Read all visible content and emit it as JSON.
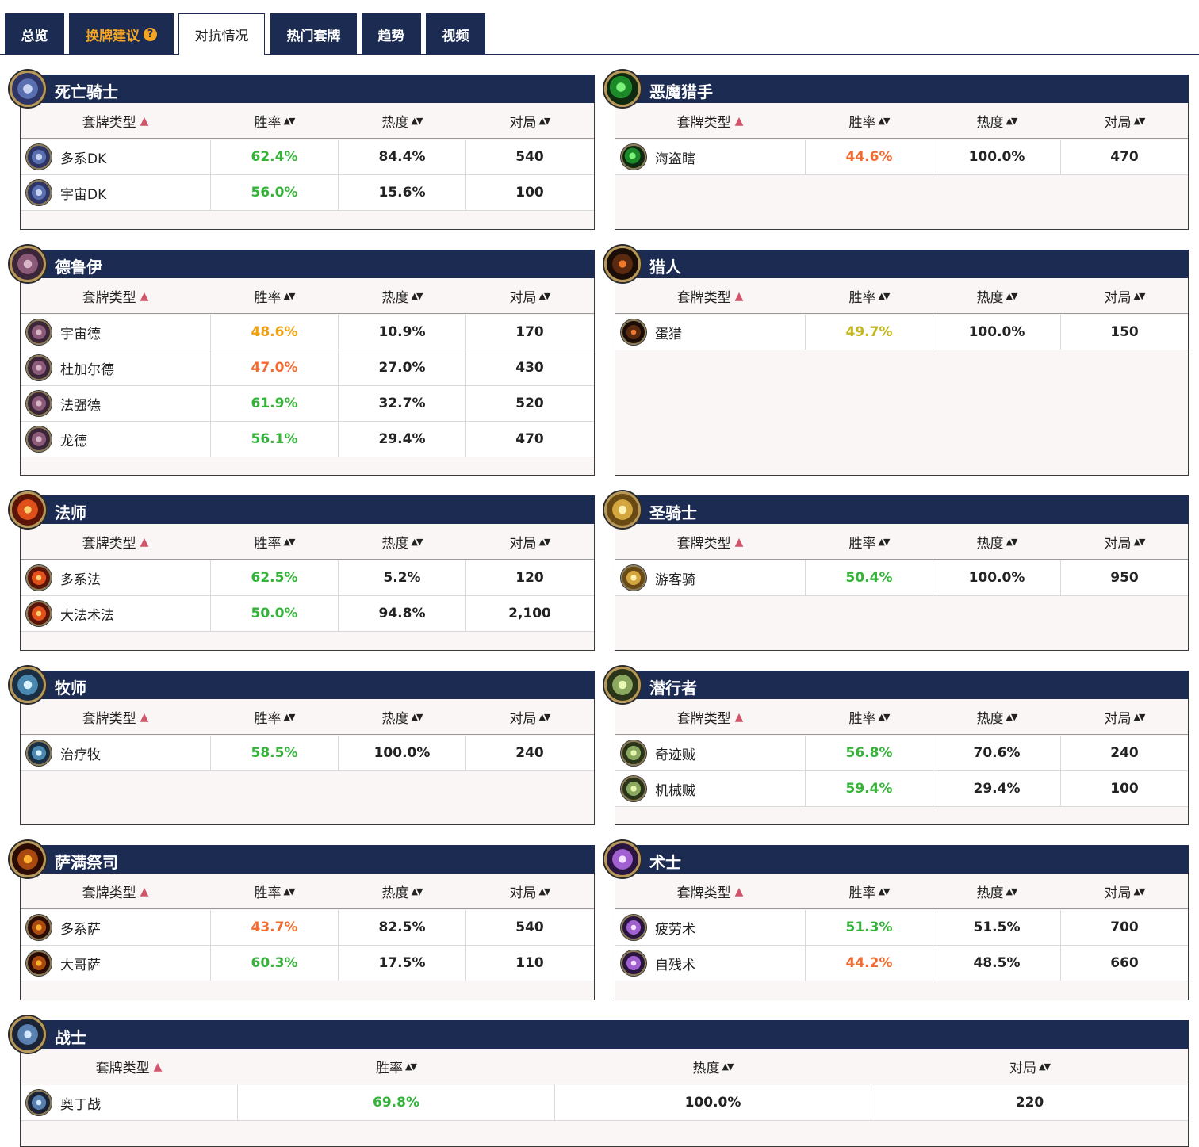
{
  "tabs": [
    {
      "label": "总览"
    },
    {
      "label": "换牌建议"
    },
    {
      "label": "对抗情况"
    },
    {
      "label": "热门套牌"
    },
    {
      "label": "趋势"
    },
    {
      "label": "视频"
    }
  ],
  "table_headers": {
    "deck": "套牌类型",
    "winrate": "胜率",
    "popularity": "热度",
    "games": "对局"
  },
  "colors": {
    "navy": "#1b2b52",
    "green": "#35b339",
    "orange": "#f26a30",
    "amber": "#f0a010",
    "olive": "#c4b81c",
    "sort_arrow": "#d0546a"
  },
  "panels": [
    {
      "title": "死亡骑士",
      "icon": "death-knight-icon",
      "rows": [
        {
          "deck": "多系DK",
          "winrate": "62.4%",
          "wr_color": "green",
          "popularity": "84.4%",
          "games": "540"
        },
        {
          "deck": "宇宙DK",
          "winrate": "56.0%",
          "wr_color": "green",
          "popularity": "15.6%",
          "games": "100"
        }
      ]
    },
    {
      "title": "恶魔猎手",
      "icon": "demon-hunter-icon",
      "rows": [
        {
          "deck": "海盗瞎",
          "winrate": "44.6%",
          "wr_color": "orange",
          "popularity": "100.0%",
          "games": "470"
        }
      ]
    },
    {
      "title": "德鲁伊",
      "icon": "druid-icon",
      "rows": [
        {
          "deck": "宇宙德",
          "winrate": "48.6%",
          "wr_color": "amber",
          "popularity": "10.9%",
          "games": "170"
        },
        {
          "deck": "杜加尔德",
          "winrate": "47.0%",
          "wr_color": "orange",
          "popularity": "27.0%",
          "games": "430"
        },
        {
          "deck": "法强德",
          "winrate": "61.9%",
          "wr_color": "green",
          "popularity": "32.7%",
          "games": "520"
        },
        {
          "deck": "龙德",
          "winrate": "56.1%",
          "wr_color": "green",
          "popularity": "29.4%",
          "games": "470"
        }
      ]
    },
    {
      "title": "猎人",
      "icon": "hunter-icon",
      "rows": [
        {
          "deck": "蛋猎",
          "winrate": "49.7%",
          "wr_color": "olive",
          "popularity": "100.0%",
          "games": "150"
        }
      ]
    },
    {
      "title": "法师",
      "icon": "mage-icon",
      "rows": [
        {
          "deck": "多系法",
          "winrate": "62.5%",
          "wr_color": "green",
          "popularity": "5.2%",
          "games": "120"
        },
        {
          "deck": "大法术法",
          "winrate": "50.0%",
          "wr_color": "green",
          "popularity": "94.8%",
          "games": "2,100"
        }
      ]
    },
    {
      "title": "圣骑士",
      "icon": "paladin-icon",
      "rows": [
        {
          "deck": "游客骑",
          "winrate": "50.4%",
          "wr_color": "green",
          "popularity": "100.0%",
          "games": "950"
        }
      ]
    },
    {
      "title": "牧师",
      "icon": "priest-icon",
      "rows": [
        {
          "deck": "治疗牧",
          "winrate": "58.5%",
          "wr_color": "green",
          "popularity": "100.0%",
          "games": "240"
        }
      ]
    },
    {
      "title": "潜行者",
      "icon": "rogue-icon",
      "rows": [
        {
          "deck": "奇迹贼",
          "winrate": "56.8%",
          "wr_color": "green",
          "popularity": "70.6%",
          "games": "240"
        },
        {
          "deck": "机械贼",
          "winrate": "59.4%",
          "wr_color": "green",
          "popularity": "29.4%",
          "games": "100"
        }
      ]
    },
    {
      "title": "萨满祭司",
      "icon": "shaman-icon",
      "rows": [
        {
          "deck": "多系萨",
          "winrate": "43.7%",
          "wr_color": "orange",
          "popularity": "82.5%",
          "games": "540"
        },
        {
          "deck": "大哥萨",
          "winrate": "60.3%",
          "wr_color": "green",
          "popularity": "17.5%",
          "games": "110"
        }
      ]
    },
    {
      "title": "术士",
      "icon": "warlock-icon",
      "rows": [
        {
          "deck": "疲劳术",
          "winrate": "51.3%",
          "wr_color": "green",
          "popularity": "51.5%",
          "games": "700"
        },
        {
          "deck": "自残术",
          "winrate": "44.2%",
          "wr_color": "orange",
          "popularity": "48.5%",
          "games": "660"
        }
      ]
    },
    {
      "title": "战士",
      "icon": "warrior-icon",
      "rows": [
        {
          "deck": "奥丁战",
          "winrate": "69.8%",
          "wr_color": "green",
          "popularity": "100.0%",
          "games": "220"
        }
      ]
    }
  ]
}
